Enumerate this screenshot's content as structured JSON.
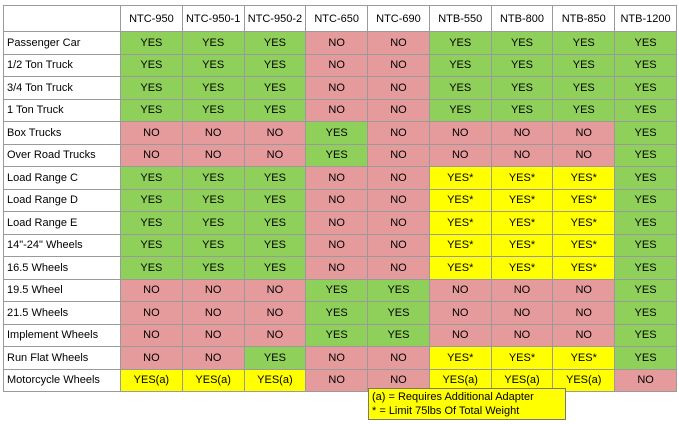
{
  "table": {
    "header": [
      "NTC-950",
      "NTC-950-1",
      "NTC-950-2",
      "NTC-650",
      "NTC-690",
      "NTB-550",
      "NTB-800",
      "NTB-850",
      "NTB-1200"
    ],
    "rows": [
      [
        "Passenger Car",
        "YES",
        "YES",
        "YES",
        "NO",
        "NO",
        "YES",
        "YES",
        "YES",
        "YES"
      ],
      [
        "1/2 Ton Truck",
        "YES",
        "YES",
        "YES",
        "NO",
        "NO",
        "YES",
        "YES",
        "YES",
        "YES"
      ],
      [
        "3/4 Ton Truck",
        "YES",
        "YES",
        "YES",
        "NO",
        "NO",
        "YES",
        "YES",
        "YES",
        "YES"
      ],
      [
        "1 Ton Truck",
        "YES",
        "YES",
        "YES",
        "NO",
        "NO",
        "YES",
        "YES",
        "YES",
        "YES"
      ],
      [
        "Box Trucks",
        "NO",
        "NO",
        "NO",
        "YES",
        "NO",
        "NO",
        "NO",
        "NO",
        "YES"
      ],
      [
        "Over Road Trucks",
        "NO",
        "NO",
        "NO",
        "YES",
        "NO",
        "NO",
        "NO",
        "NO",
        "YES"
      ],
      [
        "Load Range C",
        "YES",
        "YES",
        "YES",
        "NO",
        "NO",
        "YES*",
        "YES*",
        "YES*",
        "YES"
      ],
      [
        "Load Range D",
        "YES",
        "YES",
        "YES",
        "NO",
        "NO",
        "YES*",
        "YES*",
        "YES*",
        "YES"
      ],
      [
        "Load Range E",
        "YES",
        "YES",
        "YES",
        "NO",
        "NO",
        "YES*",
        "YES*",
        "YES*",
        "YES"
      ],
      [
        "14\"-24\" Wheels",
        "YES",
        "YES",
        "YES",
        "NO",
        "NO",
        "YES*",
        "YES*",
        "YES*",
        "YES"
      ],
      [
        "16.5 Wheels",
        "YES",
        "YES",
        "YES",
        "NO",
        "NO",
        "YES*",
        "YES*",
        "YES*",
        "YES"
      ],
      [
        "19.5 Wheel",
        "NO",
        "NO",
        "NO",
        "YES",
        "YES",
        "NO",
        "NO",
        "NO",
        "YES"
      ],
      [
        "21.5 Wheels",
        "NO",
        "NO",
        "NO",
        "YES",
        "YES",
        "NO",
        "NO",
        "NO",
        "YES"
      ],
      [
        "Implement Wheels",
        "NO",
        "NO",
        "NO",
        "YES",
        "YES",
        "NO",
        "NO",
        "NO",
        "YES"
      ],
      [
        "Run Flat Wheels",
        "NO",
        "NO",
        "YES",
        "NO",
        "NO",
        "YES*",
        "YES*",
        "YES*",
        "YES"
      ],
      [
        "Motorcycle Wheels",
        "YES(a)",
        "YES(a)",
        "YES(a)",
        "NO",
        "NO",
        "YES(a)",
        "YES(a)",
        "YES(a)",
        "NO"
      ]
    ],
    "colors": {
      "YES": "#8fd05a",
      "NO": "#e59a9b",
      "YES*": "#ffff00",
      "YES(a)": "#ffff00"
    }
  },
  "notes": [
    "(a) = Requires Additional Adapter",
    "* = Limit 75lbs Of Total Weight"
  ]
}
